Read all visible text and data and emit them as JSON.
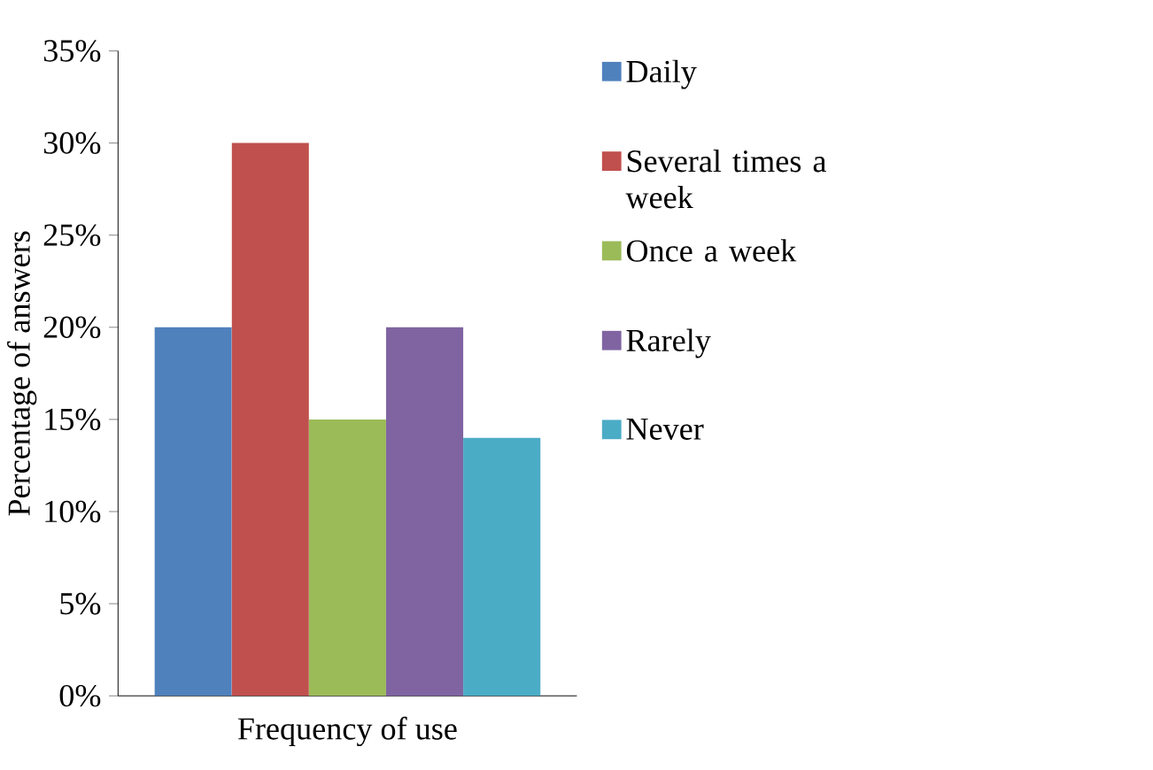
{
  "chart_data": {
    "type": "bar",
    "xlabel": "Frequency of use",
    "ylabel": "Percentage of answers",
    "categories": [
      null
    ],
    "series": [
      {
        "name": "Daily",
        "color": "#4f81bd",
        "values": [
          20
        ]
      },
      {
        "name": "Several times a week",
        "color": "#c0504d",
        "values": [
          30
        ]
      },
      {
        "name": "Once a week",
        "color": "#9bbb59",
        "values": [
          15
        ]
      },
      {
        "name": "Rarely",
        "color": "#8064a2",
        "values": [
          20
        ]
      },
      {
        "name": "Never",
        "color": "#4bacc6",
        "values": [
          14
        ]
      }
    ],
    "ylim": [
      0,
      35
    ],
    "yticks": [
      {
        "value": 0,
        "label": "0%"
      },
      {
        "value": 5,
        "label": "5%"
      },
      {
        "value": 10,
        "label": "10%"
      },
      {
        "value": 15,
        "label": "15%"
      },
      {
        "value": 20,
        "label": "20%"
      },
      {
        "value": 25,
        "label": "25%"
      },
      {
        "value": 30,
        "label": "30%"
      },
      {
        "value": 35,
        "label": "35%"
      }
    ],
    "grid": false,
    "legend": "right"
  }
}
